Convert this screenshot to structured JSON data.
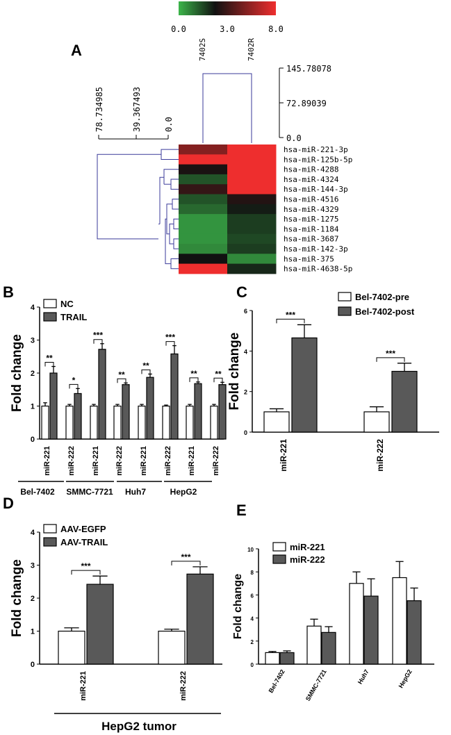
{
  "chart_data": [
    {
      "panel": "A",
      "type": "heatmap",
      "colorbar": {
        "ticks": [
          "0.0",
          "3.0",
          "8.0"
        ],
        "colors": {
          "low": "#3cb54a",
          "mid": "#111111",
          "high": "#ee2e2e"
        },
        "min": 0,
        "mid": 3,
        "max": 8
      },
      "columns": [
        "7402S",
        "7402R"
      ],
      "rows": [
        "hsa-miR-221-3p",
        "hsa-miR-125b-5p",
        "hsa-miR-4288",
        "hsa-miR-4324",
        "hsa-miR-144-3p",
        "hsa-miR-4516",
        "hsa-miR-4329",
        "hsa-miR-1275",
        "hsa-miR-1184",
        "hsa-miR-3687",
        "hsa-miR-142-3p",
        "hsa-miR-375",
        "hsa-miR-4638-5p"
      ],
      "values": [
        [
          5.6,
          8.0
        ],
        [
          8.0,
          8.0
        ],
        [
          3.2,
          8.0
        ],
        [
          1.8,
          8.0
        ],
        [
          3.8,
          8.0
        ],
        [
          1.8,
          3.4
        ],
        [
          1.4,
          2.8
        ],
        [
          0.6,
          2.2
        ],
        [
          0.6,
          2.2
        ],
        [
          0.6,
          2.0
        ],
        [
          0.8,
          2.2
        ],
        [
          3.0,
          0.8
        ],
        [
          8.0,
          2.6
        ]
      ],
      "column_dendrogram_scale": [
        "145.78078",
        "72.89039",
        "0.0"
      ],
      "row_dendrogram_scale": [
        "78.734985",
        "39.367493",
        "0.0"
      ]
    },
    {
      "panel": "B",
      "type": "bar",
      "ylabel": "Fold change",
      "ylim": [
        0,
        4
      ],
      "yticks": [
        "0",
        "1",
        "2",
        "3",
        "4"
      ],
      "legend": [
        "NC",
        "TRAIL"
      ],
      "categories": [
        "miR-221",
        "miR-222",
        "miR-221",
        "miR-222",
        "miR-221",
        "miR-222",
        "miR-221",
        "miR-222"
      ],
      "groups": [
        "Bel-7402",
        "SMMC-7721",
        "Huh7",
        "HepG2"
      ],
      "series": [
        {
          "name": "NC",
          "values": [
            1.0,
            1.0,
            1.0,
            1.0,
            1.0,
            1.0,
            1.0,
            1.0
          ],
          "errors": [
            0.1,
            0.05,
            0.05,
            0.05,
            0.05,
            0.03,
            0.05,
            0.05
          ]
        },
        {
          "name": "TRAIL",
          "values": [
            2.0,
            1.38,
            2.72,
            1.65,
            1.87,
            2.58,
            1.68,
            1.65
          ],
          "errors": [
            0.2,
            0.15,
            0.17,
            0.05,
            0.1,
            0.25,
            0.05,
            0.07
          ]
        }
      ],
      "significance": [
        "**",
        "*",
        "***",
        "**",
        "**",
        "***",
        "**",
        "**"
      ]
    },
    {
      "panel": "C",
      "type": "bar",
      "ylabel": "Fold change",
      "ylim": [
        0,
        6
      ],
      "yticks": [
        "0",
        "2",
        "4",
        "6"
      ],
      "legend": [
        "Bel-7402-pre",
        "Bel-7402-post"
      ],
      "categories": [
        "miR-221",
        "miR-222"
      ],
      "series": [
        {
          "name": "Bel-7402-pre",
          "values": [
            1.0,
            1.0
          ],
          "errors": [
            0.15,
            0.25
          ]
        },
        {
          "name": "Bel-7402-post",
          "values": [
            4.65,
            3.0
          ],
          "errors": [
            0.65,
            0.4
          ]
        }
      ],
      "significance": [
        "***",
        "***"
      ]
    },
    {
      "panel": "D",
      "type": "bar",
      "ylabel": "Fold change",
      "ylim": [
        0,
        4
      ],
      "yticks": [
        "0",
        "1",
        "2",
        "3",
        "4"
      ],
      "legend": [
        "AAV-EGFP",
        "AAV-TRAIL"
      ],
      "categories": [
        "miR-221",
        "miR-222"
      ],
      "group_label": "HepG2 tumor",
      "series": [
        {
          "name": "AAV-EGFP",
          "values": [
            1.0,
            1.0
          ],
          "errors": [
            0.1,
            0.06
          ]
        },
        {
          "name": "AAV-TRAIL",
          "values": [
            2.42,
            2.73
          ],
          "errors": [
            0.25,
            0.22
          ]
        }
      ],
      "significance": [
        "***",
        "***"
      ]
    },
    {
      "panel": "E",
      "type": "bar",
      "ylabel": "Fold change",
      "ylim": [
        0,
        10
      ],
      "yticks": [
        "0",
        "2",
        "4",
        "6",
        "8",
        "10"
      ],
      "legend": [
        "miR-221",
        "miR-222"
      ],
      "categories": [
        "Bel-7402",
        "SMMC-7721",
        "Huh7",
        "HepG2"
      ],
      "series": [
        {
          "name": "miR-221",
          "values": [
            1.0,
            3.3,
            7.0,
            7.5
          ],
          "errors": [
            0.1,
            0.6,
            1.0,
            1.4
          ]
        },
        {
          "name": "miR-222",
          "values": [
            1.0,
            2.75,
            5.9,
            5.5
          ],
          "errors": [
            0.15,
            0.5,
            1.5,
            1.1
          ]
        }
      ]
    }
  ]
}
